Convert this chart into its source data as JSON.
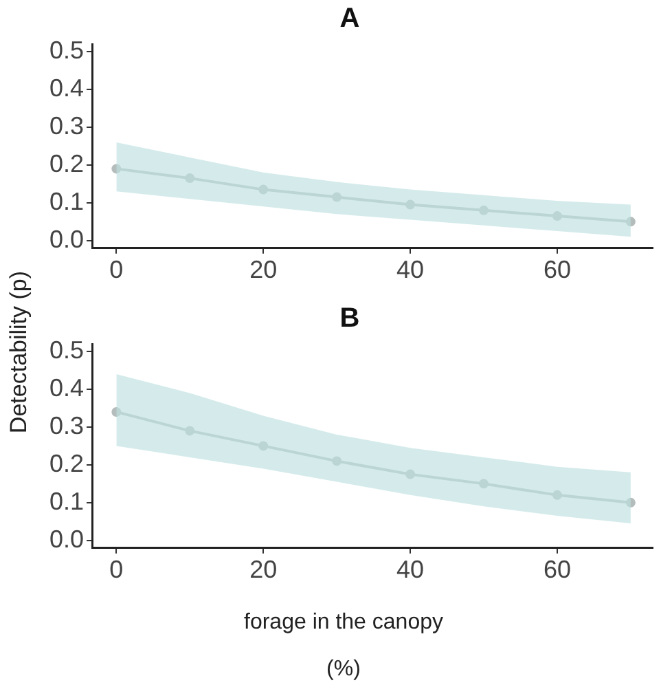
{
  "chart_data": [
    {
      "type": "line",
      "title": "A",
      "ylabel": "Detectability (p)",
      "x": [
        0,
        10,
        20,
        30,
        40,
        50,
        60,
        70
      ],
      "series": [
        {
          "color": "#b4bcbc",
          "values": [
            0.19,
            0.165,
            0.135,
            0.115,
            0.095,
            0.08,
            0.065,
            0.05
          ],
          "lower": [
            0.13,
            0.11,
            0.09,
            0.07,
            0.055,
            0.04,
            0.025,
            0.01
          ],
          "upper": [
            0.26,
            0.22,
            0.18,
            0.155,
            0.135,
            0.12,
            0.105,
            0.095
          ]
        }
      ],
      "xlim": [
        -3.3,
        73
      ],
      "xticks": [
        0,
        20,
        40,
        60
      ],
      "ylim": [
        -0.02,
        0.52
      ],
      "yticks": [
        {
          "value": 0,
          "label": "0.0"
        },
        0.1,
        0.2,
        0.3,
        0.4,
        0.5
      ],
      "marker": "circle",
      "grid": false,
      "legend": false
    },
    {
      "type": "line",
      "title": "B",
      "xlabel": "forage in the canopy (%)",
      "x": [
        0,
        10,
        20,
        30,
        40,
        50,
        60,
        70
      ],
      "series": [
        {
          "color": "#b4bcbc",
          "values": [
            0.34,
            0.29,
            0.25,
            0.21,
            0.175,
            0.15,
            0.12,
            0.1
          ],
          "lower": [
            0.25,
            0.22,
            0.19,
            0.155,
            0.12,
            0.09,
            0.065,
            0.045
          ],
          "upper": [
            0.44,
            0.39,
            0.33,
            0.28,
            0.245,
            0.22,
            0.195,
            0.18
          ]
        }
      ],
      "xlim": [
        -3.3,
        73
      ],
      "xticks": [
        0,
        20,
        40,
        60
      ],
      "ylim": [
        -0.02,
        0.52
      ],
      "yticks": [
        {
          "value": 0,
          "label": "0.0"
        },
        0.1,
        0.2,
        0.3,
        0.4,
        0.5
      ],
      "marker": "circle",
      "grid": false,
      "legend": false
    }
  ]
}
